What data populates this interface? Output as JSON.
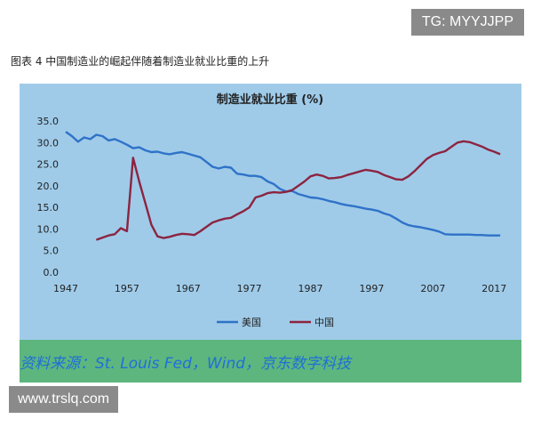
{
  "watermark_top": "TG: MYYJJPP",
  "watermark_bottom": "www.trslq.com",
  "figure_caption": "图表 4 中国制造业的崛起伴随着制造业就业比重的上升",
  "source": "资料来源：St. Louis Fed，Wind，京东数字科技",
  "colors": {
    "us": "#2f72c8",
    "china": "#8c2440",
    "plot_bg": "#9fcbe9",
    "frame": "#5db67e"
  },
  "chart_data": {
    "type": "line",
    "title": "制造业就业比重 (%)",
    "xlabel": "",
    "ylabel": "",
    "xlim": [
      1947,
      2019
    ],
    "ylim": [
      0,
      35
    ],
    "x_ticks": [
      "1947",
      "1957",
      "1967",
      "1977",
      "1987",
      "1997",
      "2007",
      "2017"
    ],
    "y_ticks": [
      "35.0",
      "30.0",
      "25.0",
      "20.0",
      "15.0",
      "10.0",
      "5.0",
      "0.0"
    ],
    "legend_position": "bottom",
    "grid": false,
    "series": [
      {
        "name": "美国",
        "points": [
          [
            1947,
            32.5
          ],
          [
            1948,
            31.5
          ],
          [
            1949,
            30.2
          ],
          [
            1950,
            31.2
          ],
          [
            1951,
            30.8
          ],
          [
            1952,
            31.8
          ],
          [
            1953,
            31.5
          ],
          [
            1954,
            30.5
          ],
          [
            1955,
            30.8
          ],
          [
            1956,
            30.2
          ],
          [
            1957,
            29.5
          ],
          [
            1958,
            28.7
          ],
          [
            1959,
            28.9
          ],
          [
            1960,
            28.2
          ],
          [
            1961,
            27.8
          ],
          [
            1962,
            27.9
          ],
          [
            1963,
            27.5
          ],
          [
            1964,
            27.3
          ],
          [
            1965,
            27.6
          ],
          [
            1966,
            27.8
          ],
          [
            1967,
            27.4
          ],
          [
            1968,
            27.0
          ],
          [
            1969,
            26.6
          ],
          [
            1970,
            25.5
          ],
          [
            1971,
            24.4
          ],
          [
            1972,
            24.0
          ],
          [
            1973,
            24.4
          ],
          [
            1974,
            24.2
          ],
          [
            1975,
            22.8
          ],
          [
            1976,
            22.6
          ],
          [
            1977,
            22.3
          ],
          [
            1978,
            22.3
          ],
          [
            1979,
            22.0
          ],
          [
            1980,
            21.0
          ],
          [
            1981,
            20.4
          ],
          [
            1982,
            19.3
          ],
          [
            1983,
            18.7
          ],
          [
            1984,
            18.8
          ],
          [
            1985,
            18.1
          ],
          [
            1986,
            17.7
          ],
          [
            1987,
            17.3
          ],
          [
            1988,
            17.2
          ],
          [
            1989,
            16.9
          ],
          [
            1990,
            16.5
          ],
          [
            1991,
            16.2
          ],
          [
            1992,
            15.8
          ],
          [
            1993,
            15.5
          ],
          [
            1994,
            15.3
          ],
          [
            1995,
            15.0
          ],
          [
            1996,
            14.7
          ],
          [
            1997,
            14.5
          ],
          [
            1998,
            14.2
          ],
          [
            1999,
            13.6
          ],
          [
            2000,
            13.2
          ],
          [
            2001,
            12.4
          ],
          [
            2002,
            11.5
          ],
          [
            2003,
            10.9
          ],
          [
            2004,
            10.6
          ],
          [
            2005,
            10.4
          ],
          [
            2006,
            10.1
          ],
          [
            2007,
            9.8
          ],
          [
            2008,
            9.4
          ],
          [
            2009,
            8.8
          ],
          [
            2010,
            8.7
          ],
          [
            2011,
            8.7
          ],
          [
            2012,
            8.7
          ],
          [
            2013,
            8.7
          ],
          [
            2014,
            8.6
          ],
          [
            2015,
            8.6
          ],
          [
            2016,
            8.5
          ],
          [
            2017,
            8.5
          ],
          [
            2018,
            8.5
          ]
        ]
      },
      {
        "name": "中国",
        "points": [
          [
            1952,
            7.5
          ],
          [
            1953,
            8.0
          ],
          [
            1954,
            8.5
          ],
          [
            1955,
            8.8
          ],
          [
            1956,
            10.2
          ],
          [
            1957,
            9.5
          ],
          [
            1958,
            26.5
          ],
          [
            1959,
            21.0
          ],
          [
            1960,
            16.0
          ],
          [
            1961,
            11.0
          ],
          [
            1962,
            8.3
          ],
          [
            1963,
            7.9
          ],
          [
            1964,
            8.2
          ],
          [
            1965,
            8.6
          ],
          [
            1966,
            8.9
          ],
          [
            1967,
            8.8
          ],
          [
            1968,
            8.6
          ],
          [
            1969,
            9.5
          ],
          [
            1970,
            10.5
          ],
          [
            1971,
            11.5
          ],
          [
            1972,
            12.0
          ],
          [
            1973,
            12.4
          ],
          [
            1974,
            12.6
          ],
          [
            1975,
            13.4
          ],
          [
            1976,
            14.1
          ],
          [
            1977,
            15.0
          ],
          [
            1978,
            17.3
          ],
          [
            1979,
            17.7
          ],
          [
            1980,
            18.3
          ],
          [
            1981,
            18.5
          ],
          [
            1982,
            18.4
          ],
          [
            1983,
            18.6
          ],
          [
            1984,
            19.0
          ],
          [
            1985,
            20.0
          ],
          [
            1986,
            21.0
          ],
          [
            1987,
            22.2
          ],
          [
            1988,
            22.6
          ],
          [
            1989,
            22.3
          ],
          [
            1990,
            21.7
          ],
          [
            1991,
            21.8
          ],
          [
            1992,
            22.0
          ],
          [
            1993,
            22.5
          ],
          [
            1994,
            22.9
          ],
          [
            1995,
            23.3
          ],
          [
            1996,
            23.7
          ],
          [
            1997,
            23.5
          ],
          [
            1998,
            23.2
          ],
          [
            1999,
            22.5
          ],
          [
            2000,
            22.0
          ],
          [
            2001,
            21.5
          ],
          [
            2002,
            21.4
          ],
          [
            2003,
            22.2
          ],
          [
            2004,
            23.4
          ],
          [
            2005,
            24.8
          ],
          [
            2006,
            26.2
          ],
          [
            2007,
            27.1
          ],
          [
            2008,
            27.6
          ],
          [
            2009,
            28.0
          ],
          [
            2010,
            29.0
          ],
          [
            2011,
            30.0
          ],
          [
            2012,
            30.3
          ],
          [
            2013,
            30.1
          ],
          [
            2014,
            29.6
          ],
          [
            2015,
            29.1
          ],
          [
            2016,
            28.4
          ],
          [
            2017,
            27.9
          ],
          [
            2018,
            27.3
          ]
        ]
      }
    ]
  }
}
